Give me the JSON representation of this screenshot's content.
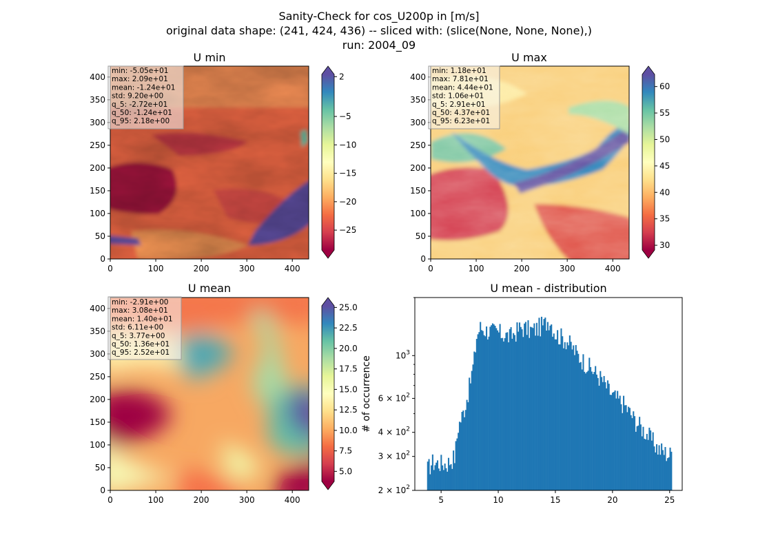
{
  "figure": {
    "title_lines": [
      "Sanity-Check for cos_U200p in [m/s]",
      "original data shape: (241, 424, 436) -- sliced with: (slice(None, None, None),)",
      "run: 2004_09"
    ]
  },
  "chart_data": [
    {
      "type": "heatmap",
      "title": "U min",
      "xlim": [
        0,
        436
      ],
      "ylim": [
        0,
        424
      ],
      "x_ticks": [
        "0",
        "100",
        "200",
        "300",
        "400"
      ],
      "y_ticks": [
        "0",
        "50",
        "100",
        "150",
        "200",
        "250",
        "300",
        "350",
        "400"
      ],
      "colormap": "Spectral",
      "colorbar": {
        "vmin": -28.5,
        "vmax": 2.4,
        "ticks": [
          "2",
          "−5",
          "−10",
          "−15",
          "−20",
          "−25"
        ],
        "tick_values": [
          2,
          -5,
          -10,
          -15,
          -20,
          -25
        ],
        "extend": "both"
      },
      "stats": [
        "min: -5.05e+01",
        "max: 2.09e+01",
        "mean: -1.24e+01",
        "std: 9.20e+00",
        "q_5: -2.72e+01",
        "q_50: -1.24e+01",
        "q_95: 2.18e+00"
      ]
    },
    {
      "type": "heatmap",
      "title": "U max",
      "xlim": [
        0,
        436
      ],
      "ylim": [
        0,
        424
      ],
      "x_ticks": [
        "0",
        "100",
        "200",
        "300",
        "400"
      ],
      "y_ticks": [
        "0",
        "50",
        "100",
        "150",
        "200",
        "250",
        "300",
        "350",
        "400"
      ],
      "colormap": "Spectral",
      "colorbar": {
        "vmin": 29.1,
        "vmax": 62.3,
        "ticks": [
          "60",
          "55",
          "50",
          "45",
          "40",
          "35",
          "30"
        ],
        "tick_values": [
          60,
          55,
          50,
          45,
          40,
          35,
          30
        ],
        "extend": "both"
      },
      "stats": [
        "min: 1.18e+01",
        "max: 7.81e+01",
        "mean: 4.44e+01",
        "std: 1.06e+01",
        "q_5: 2.91e+01",
        "q_50: 4.37e+01",
        "q_95: 6.23e+01"
      ]
    },
    {
      "type": "heatmap",
      "title": "U mean",
      "xlim": [
        0,
        436
      ],
      "ylim": [
        0,
        424
      ],
      "x_ticks": [
        "0",
        "100",
        "200",
        "300",
        "400"
      ],
      "y_ticks": [
        "0",
        "50",
        "100",
        "150",
        "200",
        "250",
        "300",
        "350",
        "400"
      ],
      "colormap": "Spectral",
      "colorbar": {
        "vmin": 3.77,
        "vmax": 25.2,
        "ticks": [
          "25.0",
          "22.5",
          "20.0",
          "17.5",
          "15.0",
          "12.5",
          "10.0",
          "7.5",
          "5.0"
        ],
        "tick_values": [
          25,
          22.5,
          20,
          17.5,
          15,
          12.5,
          10,
          7.5,
          5
        ],
        "extend": "both"
      },
      "stats": [
        "min: -2.91e+00",
        "max: 3.08e+01",
        "mean: 1.40e+01",
        "std: 6.11e+00",
        "q_5: 3.77e+00",
        "q_50: 1.36e+01",
        "q_95: 2.52e+01"
      ]
    },
    {
      "type": "bar",
      "title": "U mean - distribution",
      "ylabel": "# of occurrence",
      "xlim": [
        2.7,
        26.1
      ],
      "ylim": [
        200,
        2000
      ],
      "y_scale": "log",
      "x_ticks": [
        "5",
        "10",
        "15",
        "20",
        "25"
      ],
      "x_tick_values": [
        5,
        10,
        15,
        20,
        25
      ],
      "y_ticks": [
        {
          "value": 200,
          "mant": "2",
          "exp": "2"
        },
        {
          "value": 300,
          "mant": "3",
          "exp": "2"
        },
        {
          "value": 400,
          "mant": "4",
          "exp": "2"
        },
        {
          "value": 600,
          "mant": "6",
          "exp": "2"
        },
        {
          "value": 1000,
          "mant": "",
          "exp": "3"
        }
      ],
      "bin_range": [
        3.77,
        25.2
      ],
      "color": "#1f77b4",
      "profile_x": [
        3.77,
        4.2,
        5.5,
        6.2,
        6.5,
        7.0,
        7.5,
        7.9,
        8.1,
        8.4,
        9,
        10,
        11,
        12,
        13,
        14,
        14.5,
        15,
        16,
        17,
        18,
        19,
        20,
        21,
        22,
        23,
        24,
        25,
        25.2
      ],
      "profile_y": [
        255,
        280,
        275,
        300,
        430,
        520,
        700,
        960,
        1250,
        1400,
        1350,
        1320,
        1250,
        1400,
        1350,
        1450,
        1550,
        1300,
        1200,
        1000,
        870,
        760,
        620,
        560,
        460,
        395,
        330,
        305,
        320
      ]
    }
  ]
}
